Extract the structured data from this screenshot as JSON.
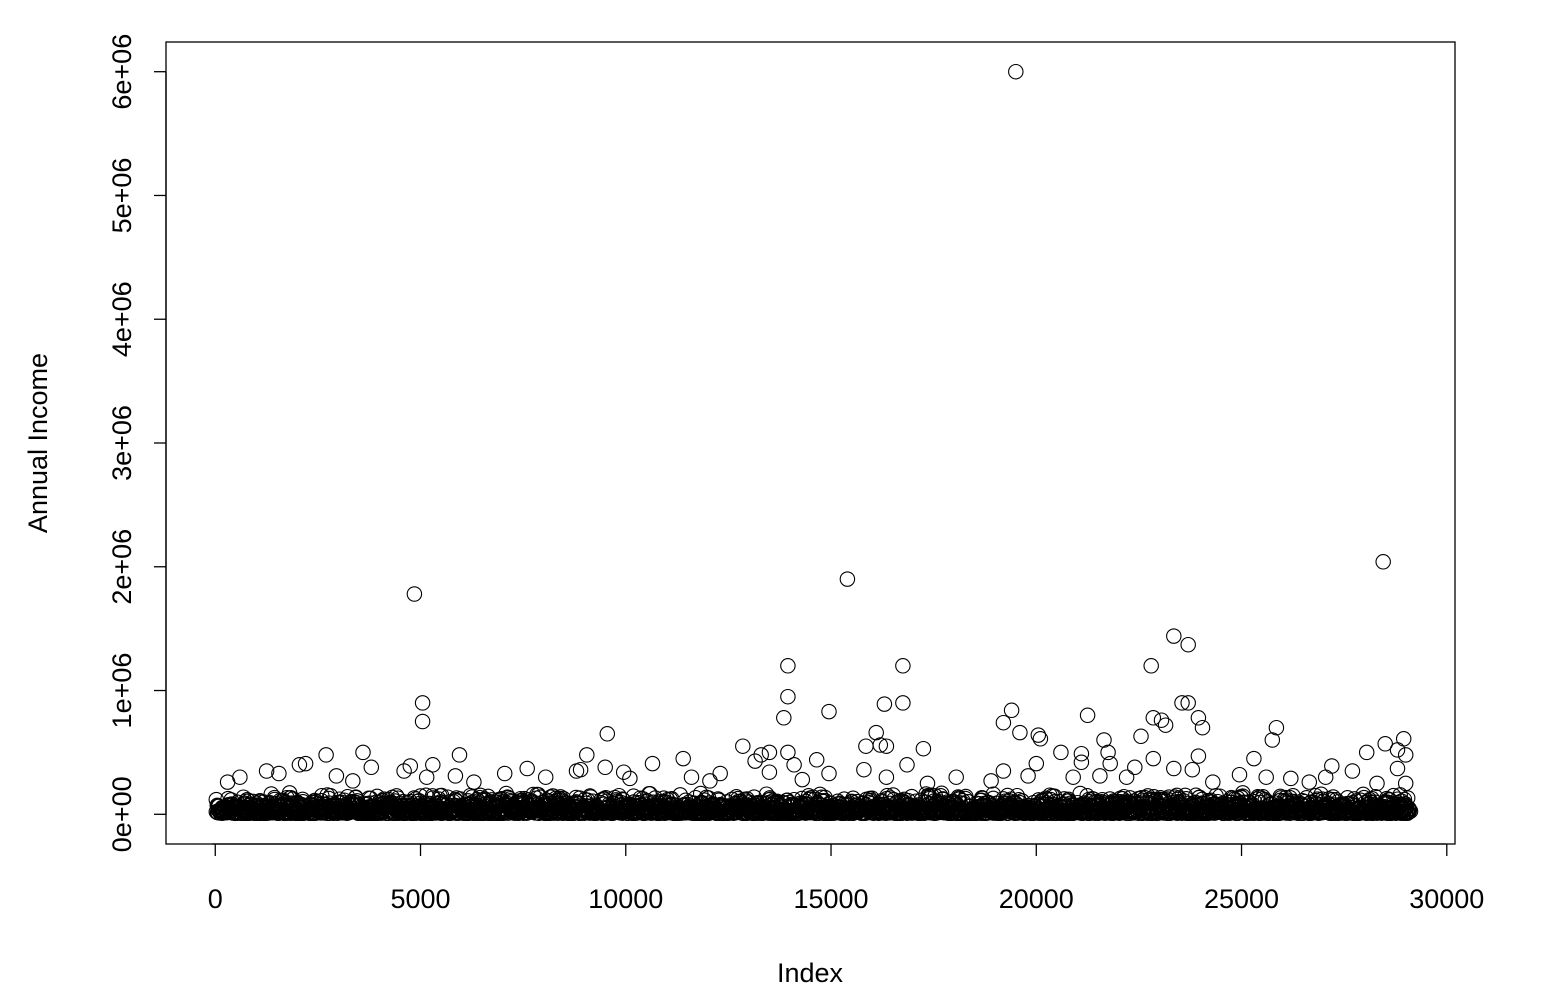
{
  "chart_data": {
    "type": "scatter",
    "title": "",
    "xlabel": "Index",
    "ylabel": "Annual Income",
    "xlim": [
      -1200,
      30200
    ],
    "ylim": [
      -240000,
      6240000
    ],
    "x_ticks": [
      0,
      5000,
      10000,
      15000,
      20000,
      25000,
      30000
    ],
    "x_tick_labels": [
      "0",
      "5000",
      "10000",
      "15000",
      "20000",
      "25000",
      "30000"
    ],
    "y_ticks": [
      0,
      1000000,
      2000000,
      3000000,
      4000000,
      5000000,
      6000000
    ],
    "y_tick_labels": [
      "0e+00",
      "1e+06",
      "2e+06",
      "3e+06",
      "4e+06",
      "5e+06",
      "6e+06"
    ],
    "marker": "open-circle",
    "grid": false,
    "legend": "none",
    "n_points": 29092,
    "dense_band": {
      "x_range": [
        0,
        29092
      ],
      "y_range": [
        0,
        180000
      ]
    },
    "points": [
      {
        "x": 4850,
        "y": 1780000
      },
      {
        "x": 5050,
        "y": 900000
      },
      {
        "x": 5050,
        "y": 750000
      },
      {
        "x": 19500,
        "y": 6000000
      },
      {
        "x": 15400,
        "y": 1900000
      },
      {
        "x": 28450,
        "y": 2040000
      },
      {
        "x": 23350,
        "y": 1440000
      },
      {
        "x": 23700,
        "y": 1370000
      },
      {
        "x": 13950,
        "y": 1200000
      },
      {
        "x": 16750,
        "y": 1200000
      },
      {
        "x": 22800,
        "y": 1200000
      },
      {
        "x": 13950,
        "y": 950000
      },
      {
        "x": 16750,
        "y": 900000
      },
      {
        "x": 16300,
        "y": 890000
      },
      {
        "x": 23550,
        "y": 900000
      },
      {
        "x": 23700,
        "y": 900000
      },
      {
        "x": 14950,
        "y": 830000
      },
      {
        "x": 19400,
        "y": 840000
      },
      {
        "x": 21250,
        "y": 800000
      },
      {
        "x": 13850,
        "y": 780000
      },
      {
        "x": 22850,
        "y": 780000
      },
      {
        "x": 23050,
        "y": 760000
      },
      {
        "x": 23950,
        "y": 780000
      },
      {
        "x": 19200,
        "y": 740000
      },
      {
        "x": 23150,
        "y": 720000
      },
      {
        "x": 24050,
        "y": 700000
      },
      {
        "x": 25850,
        "y": 700000
      },
      {
        "x": 19600,
        "y": 660000
      },
      {
        "x": 16100,
        "y": 660000
      },
      {
        "x": 9550,
        "y": 650000
      },
      {
        "x": 20050,
        "y": 640000
      },
      {
        "x": 20100,
        "y": 610000
      },
      {
        "x": 22550,
        "y": 630000
      },
      {
        "x": 21650,
        "y": 600000
      },
      {
        "x": 25750,
        "y": 600000
      },
      {
        "x": 28950,
        "y": 610000
      },
      {
        "x": 16200,
        "y": 560000
      },
      {
        "x": 16350,
        "y": 550000
      },
      {
        "x": 15850,
        "y": 550000
      },
      {
        "x": 28500,
        "y": 570000
      },
      {
        "x": 12850,
        "y": 550000
      },
      {
        "x": 17250,
        "y": 530000
      },
      {
        "x": 28800,
        "y": 520000
      },
      {
        "x": 13500,
        "y": 500000
      },
      {
        "x": 13950,
        "y": 500000
      },
      {
        "x": 20600,
        "y": 500000
      },
      {
        "x": 21100,
        "y": 490000
      },
      {
        "x": 21750,
        "y": 500000
      },
      {
        "x": 28050,
        "y": 500000
      },
      {
        "x": 29000,
        "y": 480000
      },
      {
        "x": 3600,
        "y": 500000
      },
      {
        "x": 5950,
        "y": 480000
      },
      {
        "x": 9050,
        "y": 480000
      },
      {
        "x": 2700,
        "y": 480000
      },
      {
        "x": 13300,
        "y": 480000
      },
      {
        "x": 23950,
        "y": 470000
      },
      {
        "x": 22850,
        "y": 450000
      },
      {
        "x": 25300,
        "y": 450000
      },
      {
        "x": 11400,
        "y": 450000
      },
      {
        "x": 14650,
        "y": 440000
      },
      {
        "x": 13150,
        "y": 430000
      },
      {
        "x": 21100,
        "y": 420000
      },
      {
        "x": 16850,
        "y": 400000
      },
      {
        "x": 10650,
        "y": 410000
      },
      {
        "x": 14100,
        "y": 400000
      },
      {
        "x": 2200,
        "y": 410000
      },
      {
        "x": 2050,
        "y": 400000
      },
      {
        "x": 4750,
        "y": 390000
      },
      {
        "x": 5300,
        "y": 400000
      },
      {
        "x": 20000,
        "y": 410000
      },
      {
        "x": 21800,
        "y": 410000
      },
      {
        "x": 3800,
        "y": 380000
      },
      {
        "x": 9500,
        "y": 380000
      },
      {
        "x": 27200,
        "y": 390000
      },
      {
        "x": 22400,
        "y": 380000
      },
      {
        "x": 28800,
        "y": 370000
      },
      {
        "x": 8900,
        "y": 360000
      },
      {
        "x": 7600,
        "y": 370000
      },
      {
        "x": 23350,
        "y": 370000
      },
      {
        "x": 1250,
        "y": 350000
      },
      {
        "x": 4600,
        "y": 350000
      },
      {
        "x": 8800,
        "y": 350000
      },
      {
        "x": 15800,
        "y": 360000
      },
      {
        "x": 19200,
        "y": 350000
      },
      {
        "x": 23800,
        "y": 360000
      },
      {
        "x": 27700,
        "y": 350000
      },
      {
        "x": 1550,
        "y": 330000
      },
      {
        "x": 7050,
        "y": 330000
      },
      {
        "x": 9950,
        "y": 340000
      },
      {
        "x": 12300,
        "y": 330000
      },
      {
        "x": 13500,
        "y": 340000
      },
      {
        "x": 14950,
        "y": 330000
      },
      {
        "x": 18050,
        "y": 300000
      },
      {
        "x": 24950,
        "y": 320000
      },
      {
        "x": 600,
        "y": 300000
      },
      {
        "x": 2950,
        "y": 310000
      },
      {
        "x": 5150,
        "y": 300000
      },
      {
        "x": 5850,
        "y": 310000
      },
      {
        "x": 8050,
        "y": 300000
      },
      {
        "x": 10100,
        "y": 290000
      },
      {
        "x": 11600,
        "y": 300000
      },
      {
        "x": 16350,
        "y": 300000
      },
      {
        "x": 19800,
        "y": 310000
      },
      {
        "x": 20900,
        "y": 300000
      },
      {
        "x": 21550,
        "y": 310000
      },
      {
        "x": 22200,
        "y": 300000
      },
      {
        "x": 25600,
        "y": 300000
      },
      {
        "x": 26200,
        "y": 290000
      },
      {
        "x": 27050,
        "y": 300000
      },
      {
        "x": 300,
        "y": 260000
      },
      {
        "x": 3350,
        "y": 270000
      },
      {
        "x": 6300,
        "y": 260000
      },
      {
        "x": 12050,
        "y": 270000
      },
      {
        "x": 14300,
        "y": 280000
      },
      {
        "x": 17350,
        "y": 250000
      },
      {
        "x": 18900,
        "y": 270000
      },
      {
        "x": 24300,
        "y": 260000
      },
      {
        "x": 26650,
        "y": 260000
      },
      {
        "x": 28300,
        "y": 250000
      },
      {
        "x": 29000,
        "y": 250000
      }
    ]
  }
}
